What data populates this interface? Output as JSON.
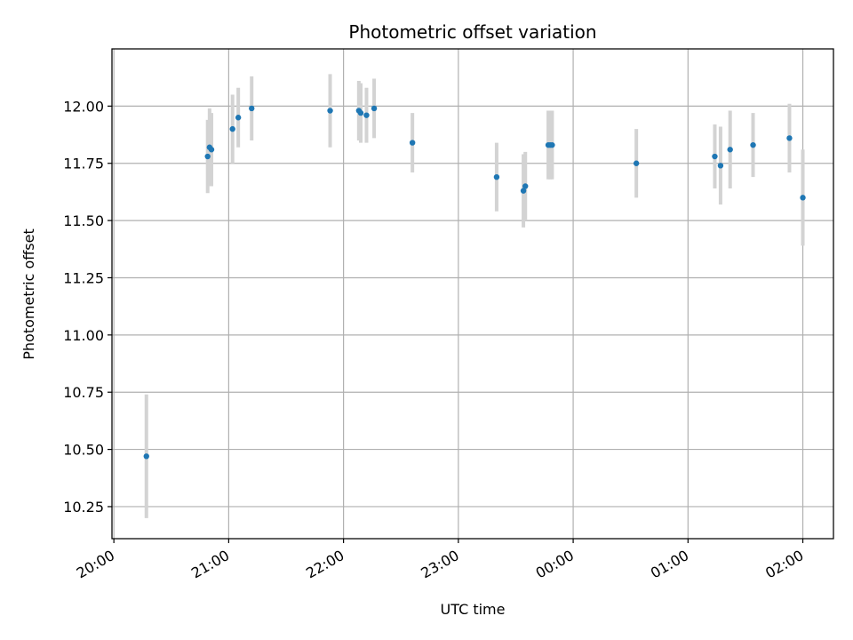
{
  "chart_data": {
    "type": "scatter",
    "title": "Photometric offset variation",
    "xlabel": "UTC time",
    "ylabel": "Photometric offset",
    "x_unit": "UTC, 20:00 on day one through 02:00 the following day",
    "xlim": [
      "19:59",
      "02:16"
    ],
    "ylim": [
      10.11,
      12.25
    ],
    "grid": true,
    "x_ticks": [
      "20:00",
      "21:00",
      "22:00",
      "23:00",
      "00:00",
      "01:00",
      "02:00"
    ],
    "y_ticks": [
      "10.25",
      "10.50",
      "10.75",
      "11.00",
      "11.25",
      "11.50",
      "11.75",
      "12.00"
    ],
    "colors": {
      "marker": "#1f77b4",
      "errorbar": "#d3d3d3",
      "grid": "#b0b0b0"
    },
    "series": [
      {
        "points": [
          {
            "x": "20:17",
            "y": 10.47,
            "err": 0.27
          },
          {
            "x": "20:49",
            "y": 11.78,
            "err": 0.16
          },
          {
            "x": "20:50",
            "y": 11.82,
            "err": 0.17
          },
          {
            "x": "20:51",
            "y": 11.81,
            "err": 0.16
          },
          {
            "x": "21:02",
            "y": 11.9,
            "err": 0.15
          },
          {
            "x": "21:05",
            "y": 11.95,
            "err": 0.13
          },
          {
            "x": "21:12",
            "y": 11.99,
            "err": 0.14
          },
          {
            "x": "21:53",
            "y": 11.98,
            "err": 0.16
          },
          {
            "x": "22:08",
            "y": 11.98,
            "err": 0.13
          },
          {
            "x": "22:09",
            "y": 11.97,
            "err": 0.13
          },
          {
            "x": "22:12",
            "y": 11.96,
            "err": 0.12
          },
          {
            "x": "22:16",
            "y": 11.99,
            "err": 0.13
          },
          {
            "x": "22:36",
            "y": 11.84,
            "err": 0.13
          },
          {
            "x": "23:20",
            "y": 11.69,
            "err": 0.15
          },
          {
            "x": "23:34",
            "y": 11.63,
            "err": 0.16
          },
          {
            "x": "23:35",
            "y": 11.65,
            "err": 0.15
          },
          {
            "x": "23:47",
            "y": 11.83,
            "err": 0.15
          },
          {
            "x": "23:48",
            "y": 11.83,
            "err": 0.15
          },
          {
            "x": "23:49",
            "y": 11.83,
            "err": 0.15
          },
          {
            "x": "00:33",
            "y": 11.75,
            "err": 0.15
          },
          {
            "x": "01:14",
            "y": 11.78,
            "err": 0.14
          },
          {
            "x": "01:17",
            "y": 11.74,
            "err": 0.17
          },
          {
            "x": "01:22",
            "y": 11.81,
            "err": 0.17
          },
          {
            "x": "01:34",
            "y": 11.83,
            "err": 0.14
          },
          {
            "x": "01:53",
            "y": 11.86,
            "err": 0.15
          },
          {
            "x": "02:00",
            "y": 11.6,
            "err": 0.21
          }
        ]
      }
    ]
  }
}
